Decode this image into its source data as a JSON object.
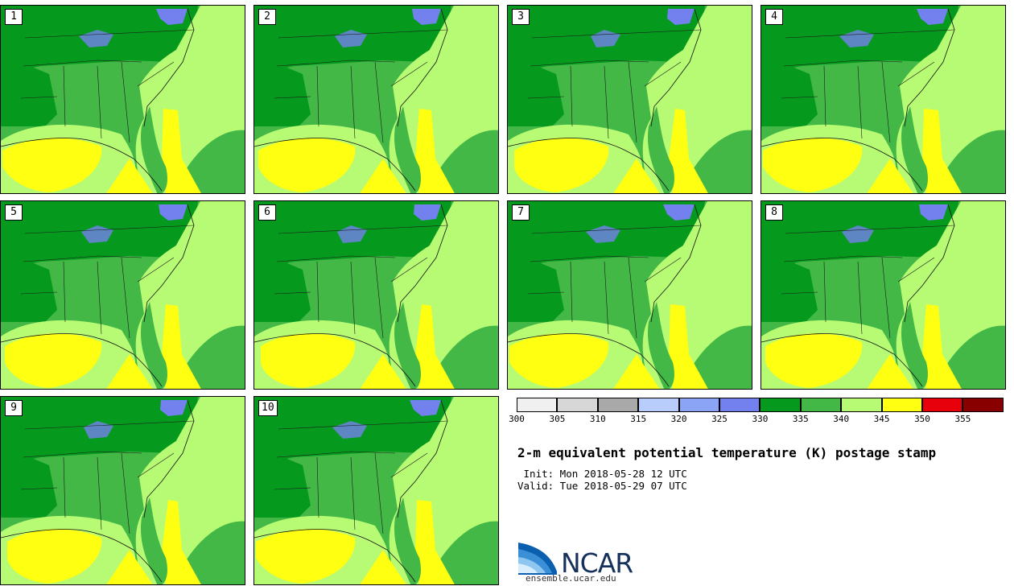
{
  "title": "2-m equivalent potential temperature (K) postage stamp",
  "init_line": " Init: Mon 2018-05-28 12 UTC",
  "valid_line": "Valid: Tue 2018-05-29 07 UTC",
  "members": [
    "1",
    "2",
    "3",
    "4",
    "5",
    "6",
    "7",
    "8",
    "9",
    "10"
  ],
  "colorbar": {
    "levels": [
      "300",
      "305",
      "310",
      "315",
      "320",
      "325",
      "330",
      "335",
      "340",
      "345",
      "350",
      "355"
    ],
    "colors": [
      "#f0f0f0",
      "#d7d7d7",
      "#a9a9a9",
      "#b8cdfb",
      "#8ca4f5",
      "#7381ee",
      "#059a1d",
      "#43b846",
      "#b7fb74",
      "#ffff12",
      "#e7000b",
      "#880000"
    ]
  },
  "logo": {
    "name": "NCAR",
    "url": "ensemble.ucar.edu"
  }
}
